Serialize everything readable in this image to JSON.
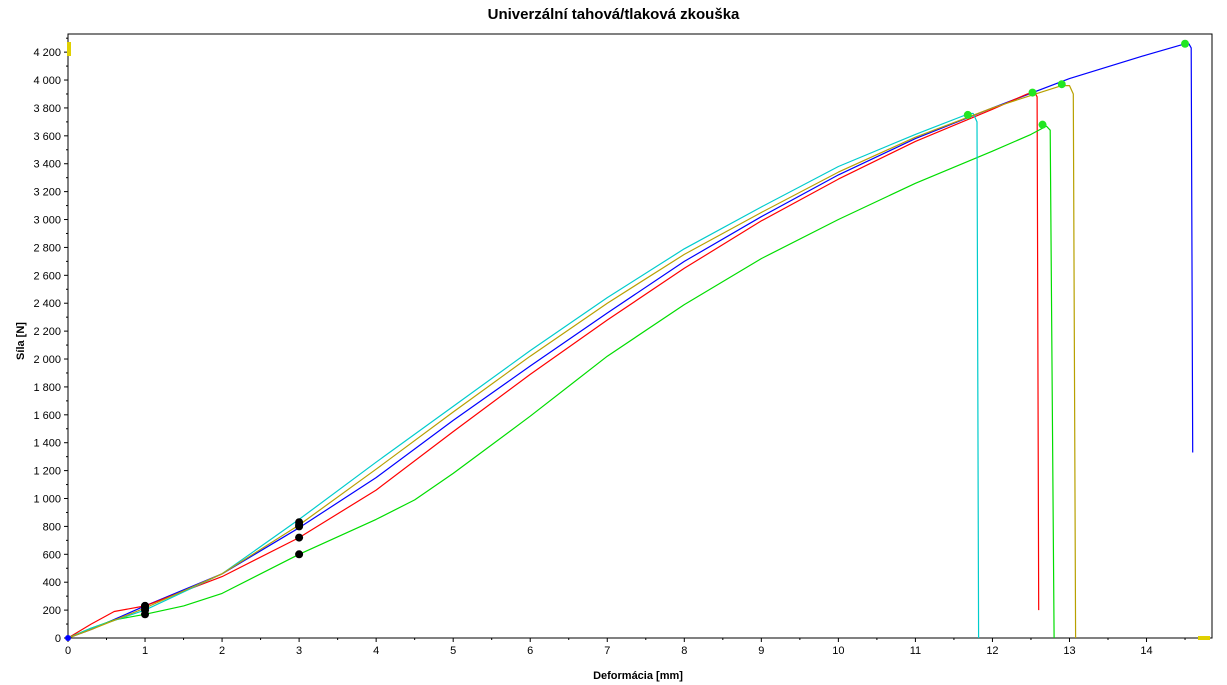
{
  "chart_data": {
    "type": "line",
    "title": "Univerzální tahová/tlaková zkouška",
    "xlabel": "Deformácia [mm]",
    "ylabel": "Síla [N]",
    "xlim": [
      0,
      14.85
    ],
    "ylim": [
      0,
      4330
    ],
    "x_ticks": [
      0,
      1,
      2,
      3,
      4,
      5,
      6,
      7,
      8,
      9,
      10,
      11,
      12,
      13,
      14
    ],
    "x_tick_labels": [
      "0",
      "1",
      "2",
      "3",
      "4",
      "5",
      "6",
      "7",
      "8",
      "9",
      "10",
      "11",
      "12",
      "13",
      "14"
    ],
    "y_ticks": [
      0,
      200,
      400,
      600,
      800,
      1000,
      1200,
      1400,
      1600,
      1800,
      2000,
      2200,
      2400,
      2600,
      2800,
      3000,
      3200,
      3400,
      3600,
      3800,
      4000,
      4200
    ],
    "y_tick_labels": [
      "0",
      "200",
      "400",
      "600",
      "800",
      "1 000",
      "1 200",
      "1 400",
      "1 600",
      "1 800",
      "2 000",
      "2 200",
      "2 400",
      "2 600",
      "2 800",
      "3 000",
      "3 200",
      "3 400",
      "3 600",
      "3 800",
      "4 000",
      "4 200"
    ],
    "grid": true,
    "series": [
      {
        "color": "#0000ff",
        "points": [
          [
            0,
            0
          ],
          [
            0.3,
            60
          ],
          [
            1,
            230
          ],
          [
            2,
            460
          ],
          [
            3,
            790
          ],
          [
            4,
            1150
          ],
          [
            5,
            1560
          ],
          [
            6,
            1950
          ],
          [
            7,
            2330
          ],
          [
            8,
            2700
          ],
          [
            9,
            3020
          ],
          [
            10,
            3320
          ],
          [
            11,
            3580
          ],
          [
            12,
            3800
          ],
          [
            13,
            4010
          ],
          [
            14,
            4180
          ],
          [
            14.5,
            4260
          ],
          [
            14.55,
            4260
          ],
          [
            14.58,
            4230
          ],
          [
            14.6,
            1330
          ]
        ],
        "max_point": [
          14.5,
          4260
        ],
        "marker_points": [
          [
            1,
            230
          ],
          [
            3,
            800
          ]
        ]
      },
      {
        "color": "#ff0000",
        "points": [
          [
            0,
            0
          ],
          [
            0.3,
            100
          ],
          [
            0.6,
            190
          ],
          [
            1,
            230
          ],
          [
            2,
            440
          ],
          [
            3,
            720
          ],
          [
            4,
            1060
          ],
          [
            5,
            1480
          ],
          [
            6,
            1890
          ],
          [
            7,
            2280
          ],
          [
            8,
            2650
          ],
          [
            9,
            2990
          ],
          [
            10,
            3290
          ],
          [
            11,
            3560
          ],
          [
            12,
            3790
          ],
          [
            12.45,
            3900
          ],
          [
            12.55,
            3910
          ],
          [
            12.58,
            3880
          ],
          [
            12.6,
            200
          ]
        ],
        "max_point": [
          12.52,
          3910
        ],
        "marker_points": [
          [
            1,
            230
          ],
          [
            3,
            720
          ]
        ]
      },
      {
        "color": "#00dd00",
        "points": [
          [
            0,
            0
          ],
          [
            0.3,
            70
          ],
          [
            0.6,
            130
          ],
          [
            1,
            170
          ],
          [
            1.5,
            230
          ],
          [
            2,
            320
          ],
          [
            3,
            600
          ],
          [
            4,
            850
          ],
          [
            4.5,
            990
          ],
          [
            5,
            1180
          ],
          [
            6,
            1590
          ],
          [
            7,
            2020
          ],
          [
            8,
            2390
          ],
          [
            9,
            2720
          ],
          [
            10,
            3000
          ],
          [
            11,
            3260
          ],
          [
            12,
            3490
          ],
          [
            12.5,
            3610
          ],
          [
            12.7,
            3670
          ],
          [
            12.75,
            3640
          ],
          [
            12.8,
            0
          ]
        ],
        "max_point": [
          12.65,
          3680
        ],
        "marker_points": [
          [
            1,
            170
          ],
          [
            3,
            600
          ]
        ]
      },
      {
        "color": "#00cccc",
        "points": [
          [
            0,
            0
          ],
          [
            0.3,
            70
          ],
          [
            1,
            200
          ],
          [
            2,
            460
          ],
          [
            3,
            850
          ],
          [
            4,
            1260
          ],
          [
            5,
            1660
          ],
          [
            6,
            2060
          ],
          [
            7,
            2440
          ],
          [
            8,
            2790
          ],
          [
            9,
            3090
          ],
          [
            10,
            3380
          ],
          [
            11,
            3610
          ],
          [
            11.7,
            3760
          ],
          [
            11.75,
            3760
          ],
          [
            11.8,
            3700
          ],
          [
            11.82,
            0
          ]
        ],
        "max_point": [
          11.68,
          3750
        ],
        "marker_points": [
          [
            1,
            200
          ],
          [
            3,
            830
          ]
        ]
      },
      {
        "color": "#b8a000",
        "points": [
          [
            0,
            0
          ],
          [
            0.3,
            60
          ],
          [
            1,
            215
          ],
          [
            2,
            460
          ],
          [
            3,
            810
          ],
          [
            4,
            1210
          ],
          [
            5,
            1620
          ],
          [
            6,
            2020
          ],
          [
            7,
            2400
          ],
          [
            8,
            2750
          ],
          [
            9,
            3050
          ],
          [
            10,
            3340
          ],
          [
            11,
            3590
          ],
          [
            12,
            3800
          ],
          [
            12.5,
            3890
          ],
          [
            12.9,
            3960
          ],
          [
            13,
            3960
          ],
          [
            13.05,
            3900
          ],
          [
            13.08,
            0
          ]
        ],
        "max_point": [
          12.9,
          3970
        ],
        "marker_points": [
          [
            1,
            215
          ],
          [
            3,
            810
          ]
        ]
      }
    ]
  }
}
